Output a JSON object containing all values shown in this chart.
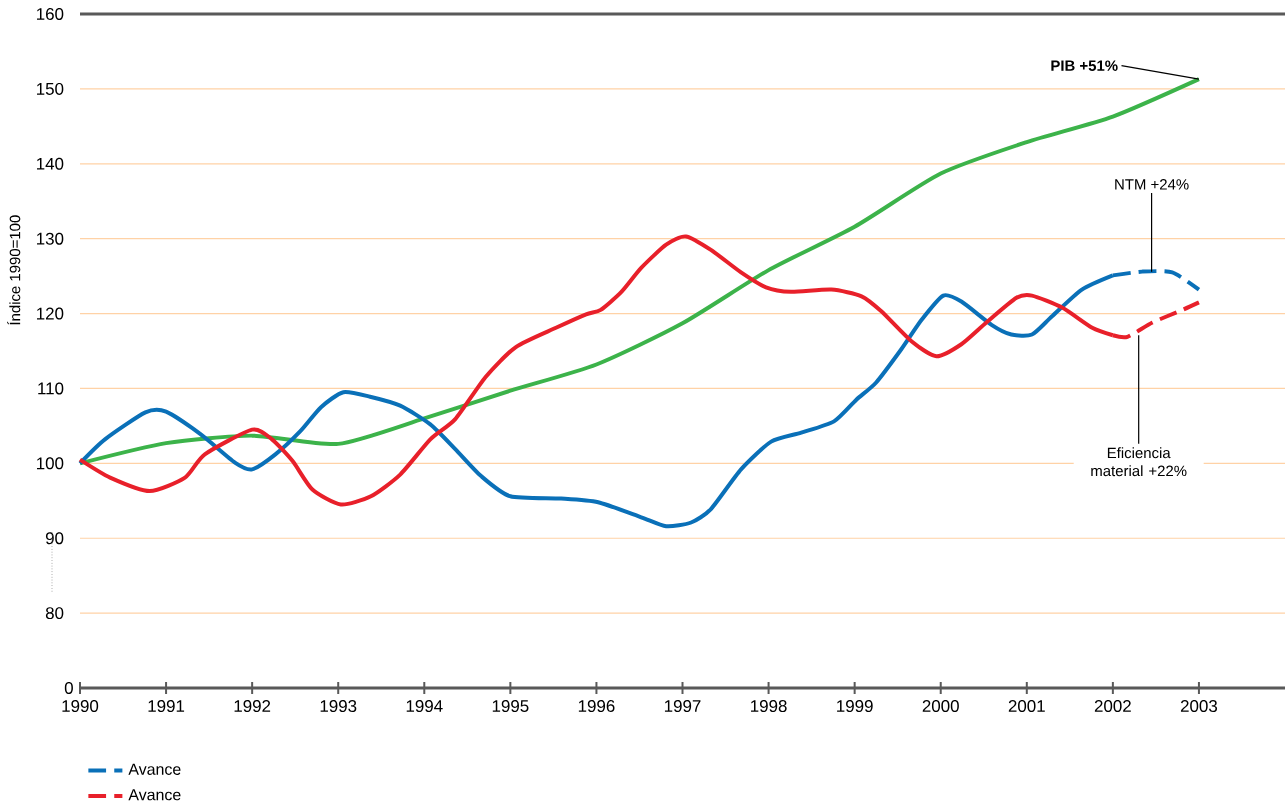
{
  "chart_data": {
    "type": "line",
    "ylabel": "Índice 1990=100",
    "xlim": [
      1990,
      2004
    ],
    "xticks": [
      1990,
      1991,
      1992,
      1993,
      1994,
      1995,
      1996,
      1997,
      1998,
      1999,
      2000,
      2001,
      2002,
      2003
    ],
    "ylim": [
      70,
      160
    ],
    "yticks": [
      80,
      90,
      100,
      110,
      120,
      130,
      140,
      150,
      160
    ],
    "grid": "y",
    "legend": "bottom left",
    "line_style": "solid",
    "marker": "none",
    "series": [
      {
        "color": "#3cb34a",
        "x": [
          1990,
          1991,
          1992,
          1993,
          1994,
          1995,
          1996,
          1997,
          1998,
          1999,
          2000,
          2001,
          2002,
          2003
        ],
        "values": [
          100,
          102.7,
          103.7,
          102.6,
          106,
          109.7,
          113.2,
          118.7,
          125.8,
          131.6,
          138.7,
          142.9,
          146.3,
          151.3
        ]
      },
      {
        "color": "#0a70b8",
        "x": [
          1990,
          1990.29,
          1990.76,
          1991.0,
          1991.4,
          1991.8,
          1992.0,
          1992.27,
          1992.56,
          1992.8,
          1993.06,
          1993.37,
          1993.72,
          1994.07,
          1994.36,
          1994.66,
          1995.0,
          1995.59,
          1996.02,
          1996.52,
          1996.81,
          1997.1,
          1997.33,
          1997.68,
          1998.03,
          1998.38,
          1998.76,
          1999.02,
          1999.25,
          1999.54,
          1999.78,
          2000.03,
          2000.24,
          2000.59,
          2000.82,
          2001.06,
          2001.29,
          2001.64,
          2002.0
        ],
        "values": [
          100,
          103.2,
          106.8,
          106.9,
          103.9,
          100.1,
          99.2,
          101.2,
          104.3,
          107.5,
          109.5,
          108.9,
          107.7,
          105.2,
          101.9,
          98.3,
          95.6,
          95.3,
          94.8,
          92.8,
          91.6,
          92.1,
          93.9,
          99.2,
          102.9,
          104.1,
          105.6,
          108.5,
          110.8,
          115.2,
          119.2,
          122.4,
          121.6,
          118.5,
          117.2,
          117.2,
          119.6,
          123.2,
          125.1
        ]
      },
      {
        "name": "Avance",
        "color": "#0a70b8",
        "line_style": "dashed",
        "x": [
          2002.0,
          2002.34,
          2002.69,
          2003.0
        ],
        "values": [
          125.1,
          125.6,
          125.5,
          123.2
        ]
      },
      {
        "color": "#e8202a",
        "x": [
          1990,
          1990.35,
          1990.81,
          1991.22,
          1991.45,
          1992.0,
          1992.23,
          1992.47,
          1992.7,
          1993.03,
          1993.38,
          1993.72,
          1994.07,
          1994.36,
          1994.71,
          1995.06,
          1995.53,
          1995.88,
          1996.05,
          1996.29,
          1996.52,
          1996.81,
          1997.04,
          1997.33,
          1997.68,
          1997.97,
          1998.26,
          1998.73,
          1999.08,
          1999.31,
          1999.66,
          1999.95,
          2000.24,
          2000.53,
          2000.88,
          2001.06,
          2001.41,
          2001.76,
          2002.0
        ],
        "values": [
          100.5,
          98.1,
          96.3,
          98.1,
          101.2,
          104.5,
          103.2,
          100.3,
          96.5,
          94.5,
          95.6,
          98.5,
          103.2,
          105.9,
          111.5,
          115.5,
          118.1,
          119.9,
          120.5,
          122.9,
          126.1,
          129.2,
          130.3,
          128.5,
          125.5,
          123.5,
          122.9,
          123.2,
          122.3,
          120.3,
          116.3,
          114.3,
          115.9,
          118.8,
          122.1,
          122.4,
          120.8,
          118.1,
          117.1
        ]
      },
      {
        "name": "Avance",
        "color": "#e8202a",
        "line_style": "dashed",
        "x": [
          2002.0,
          2002.17,
          2002.46,
          2002.81,
          2003.0
        ],
        "values": [
          117.1,
          116.9,
          118.8,
          120.5,
          121.5
        ]
      }
    ],
    "annotations": [
      {
        "text": "**PIB +51%**",
        "x": 2003,
        "y": 151.3
      },
      {
        "text": "NTM +24%",
        "x": 2002.45,
        "y": 125.6
      },
      {
        "text": "Eficiencia material +22%",
        "x": 2002.3,
        "y": 117.1
      },
      "0"
    ]
  }
}
